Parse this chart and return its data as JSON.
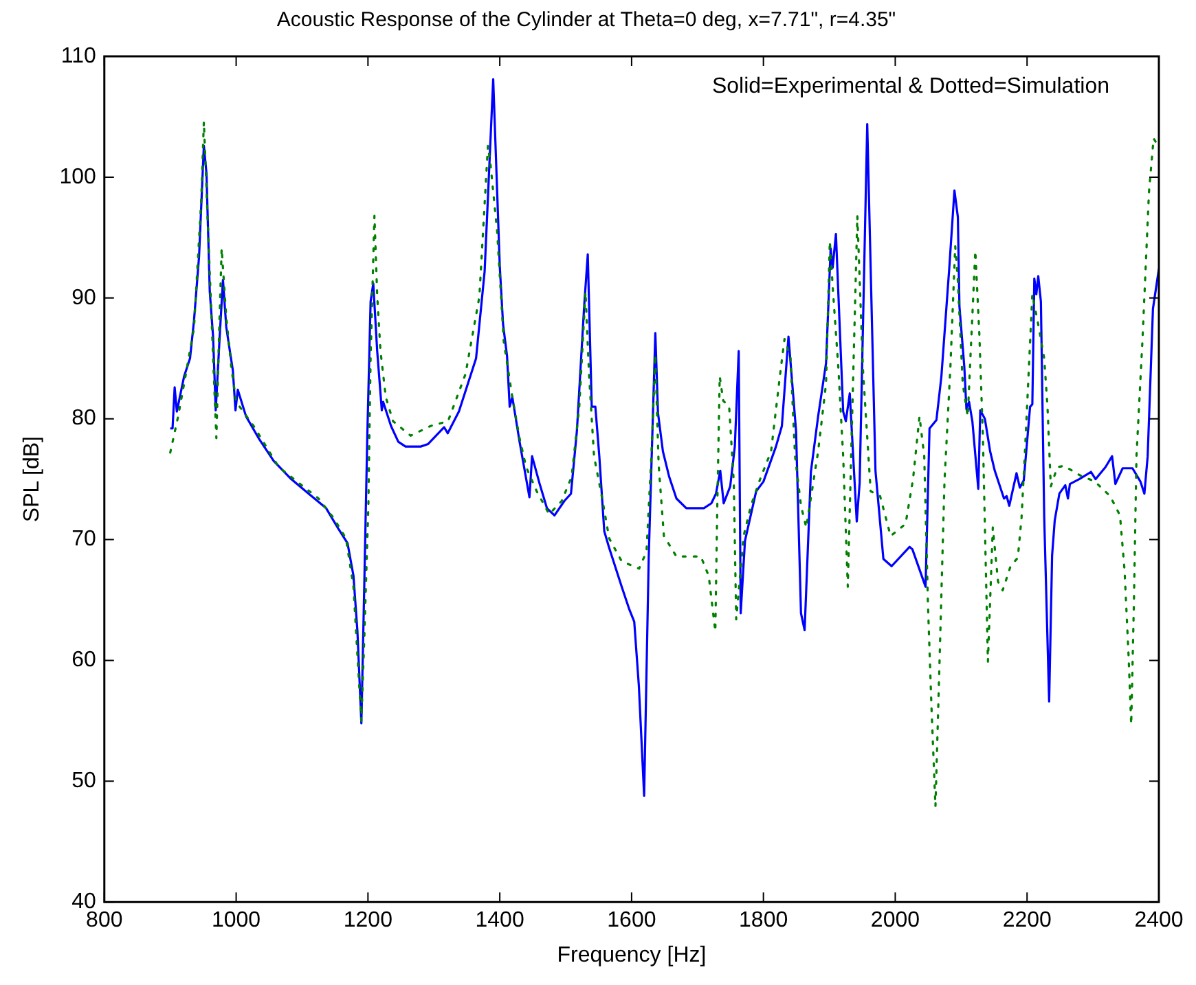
{
  "chart_data": {
    "type": "line",
    "title": "Acoustic Response of the Cylinder at Theta=0 deg, x=7.71\", r=4.35\"",
    "xlabel": "Frequency [Hz]",
    "ylabel": "SPL [dB]",
    "annotations": [
      "Solid=Experimental & Dotted=Simulation"
    ],
    "xlim": [
      800,
      2400
    ],
    "xticks": [
      800,
      1000,
      1200,
      1400,
      1600,
      1800,
      2000,
      2200,
      2400
    ],
    "ylim": [
      40,
      110
    ],
    "yticks": [
      40,
      50,
      60,
      70,
      80,
      90,
      100,
      110
    ],
    "grid": false,
    "legend": false,
    "marker": "none",
    "series": [
      {
        "color": "#0000ff",
        "line_style": "solid",
        "x": [
          900,
          903.5,
          906.7,
          910,
          921,
          930,
          936,
          943.7,
          951,
          955,
          960,
          965,
          969,
          975,
          980,
          985,
          990.5,
          995,
          999,
          1002.5,
          1015,
          1034,
          1057,
          1083.6,
          1110,
          1136.5,
          1155,
          1169,
          1178,
          1184,
          1190,
          1194.5,
          1199,
          1204,
          1208,
          1214,
          1221,
          1223,
          1235,
          1246,
          1257,
          1280,
          1291,
          1315.6,
          1321,
          1338,
          1364,
          1377,
          1390,
          1400,
          1405,
          1411,
          1415,
          1419,
          1430,
          1445,
          1449,
          1460,
          1471.5,
          1483,
          1498,
          1508,
          1517,
          1528,
          1533.5,
          1539.5,
          1545,
          1551,
          1558.5,
          1566,
          1585,
          1596,
          1604,
          1611,
          1619,
          1626,
          1636,
          1640,
          1647.5,
          1657,
          1668,
          1683,
          1709.6,
          1721,
          1728,
          1734.5,
          1739.7,
          1749.6,
          1756.6,
          1762.5,
          1765.5,
          1772,
          1789,
          1800,
          1819,
          1828,
          1838,
          1849.5,
          1857,
          1862.5,
          1872,
          1883,
          1895,
          1902,
          1905,
          1910,
          1921,
          1925,
          1931,
          1941.6,
          1946,
          1957.5,
          1970,
          1982,
          1994.5,
          2021.8,
          2026,
          2046,
          2052,
          2062.5,
          2070,
          2082,
          2089.8,
          2095,
          2097.4,
          2104.8,
          2108,
          2112,
          2117,
          2126,
          2129,
          2136,
          2144,
          2151,
          2165,
          2169,
          2173,
          2184,
          2189,
          2195,
          2204.6,
          2208,
          2211,
          2214,
          2217,
          2221,
          2226,
          2233.5,
          2238,
          2242,
          2249,
          2258,
          2262,
          2265,
          2279,
          2297,
          2304,
          2319,
          2329,
          2334,
          2345,
          2360,
          2372,
          2378,
          2383,
          2391,
          2400
        ],
        "values": [
          79.2,
          79.2,
          82.6,
          80.6,
          83.5,
          85,
          88.1,
          93.4,
          102.6,
          100.3,
          90.5,
          86.8,
          80.7,
          86.8,
          91.5,
          87.6,
          85.6,
          84,
          80.7,
          82.4,
          80.2,
          78.4,
          76.5,
          75,
          73.8,
          72.6,
          70.9,
          69.7,
          67,
          62.4,
          54.8,
          66.5,
          78.6,
          89.7,
          91.2,
          85.6,
          80.7,
          81.4,
          79.4,
          78.1,
          77.7,
          77.7,
          77.9,
          79.3,
          78.8,
          80.6,
          85,
          92.2,
          108.1,
          92.6,
          87.8,
          85.2,
          81,
          81.8,
          78.1,
          73.5,
          76.9,
          74.7,
          72.6,
          72,
          73.2,
          73.8,
          79,
          89.3,
          93.6,
          81,
          81,
          76.9,
          70.7,
          69.3,
          66.1,
          64.3,
          63.2,
          57.9,
          48.8,
          68.6,
          87.1,
          80.5,
          77.3,
          75.2,
          73.4,
          72.6,
          72.6,
          73,
          73.8,
          75.7,
          73,
          74.4,
          77.7,
          85.6,
          63.9,
          69.9,
          74,
          74.8,
          77.7,
          79.4,
          86.8,
          79,
          63.9,
          62.5,
          75.6,
          80.2,
          84.6,
          94.1,
          92.5,
          95.3,
          80.6,
          79.8,
          82.1,
          71.5,
          74.7,
          104.4,
          75.7,
          68.4,
          67.8,
          69.4,
          69.2,
          66.1,
          79.2,
          79.9,
          83.5,
          92.5,
          98.9,
          96.7,
          89.3,
          84.3,
          80.8,
          81.4,
          79.8,
          74.2,
          80.7,
          80,
          77.3,
          75.7,
          73.4,
          73.6,
          72.8,
          75.5,
          74.3,
          74.9,
          81,
          81.2,
          91.6,
          90.3,
          91.8,
          89.7,
          71.9,
          56.6,
          68.7,
          71.6,
          73.8,
          74.5,
          73.4,
          74.6,
          75,
          75.6,
          75,
          76,
          76.9,
          74.6,
          75.9,
          75.9,
          74.8,
          73.8,
          76.9,
          89.1,
          92.4
        ]
      },
      {
        "color": "#008000",
        "line_style": "dotted",
        "x": [
          900,
          912,
          923,
          936,
          947,
          951,
          959,
          965,
          970,
          974,
          978,
          985,
          992.6,
          1000,
          1026.6,
          1064.6,
          1125,
          1147.6,
          1166.6,
          1178,
          1185,
          1190,
          1194.5,
          1200.6,
          1204,
          1209.8,
          1214,
          1219,
          1227,
          1238,
          1264.8,
          1295,
          1321.5,
          1348,
          1369,
          1382,
          1386,
          1396,
          1406,
          1419,
          1430,
          1440,
          1456,
          1475,
          1494,
          1509,
          1520.6,
          1530,
          1535.6,
          1543,
          1554.7,
          1566,
          1585,
          1611.4,
          1622.6,
          1630,
          1636,
          1641,
          1649,
          1668,
          1690.8,
          1705,
          1717,
          1727,
          1730,
          1733.7,
          1739,
          1748,
          1755,
          1758.7,
          1770,
          1781,
          1795,
          1811.6,
          1826,
          1832,
          1841,
          1848,
          1857,
          1865,
          1883,
          1895,
          1900.7,
          1906,
          1913.6,
          1921,
          1928,
          1935,
          1942.5,
          1951,
          1962.7,
          1977,
          1993,
          2015.7,
          2027,
          2036.8,
          2044,
          2049.7,
          2055,
          2061,
          2067,
          2074.7,
          2083.7,
          2091,
          2095,
          2102.4,
          2110,
          2121.5,
          2127.6,
          2133,
          2140.6,
          2148,
          2156,
          2163,
          2175,
          2186,
          2191.6,
          2197,
          2208,
          2218,
          2226,
          2231,
          2236,
          2246,
          2256,
          2281,
          2303,
          2326,
          2341,
          2348,
          2354,
          2358,
          2362,
          2366,
          2375,
          2385,
          2392,
          2400
        ],
        "values": [
          77.2,
          80.2,
          83.5,
          87.5,
          98,
          104.6,
          93.4,
          85.1,
          78.4,
          86.8,
          94.1,
          88.4,
          84.3,
          81.4,
          79.4,
          76,
          73.4,
          71.8,
          70.1,
          66.1,
          59.5,
          55,
          62,
          72.8,
          85.1,
          96.8,
          90.2,
          85.6,
          81.8,
          79.8,
          78.6,
          79.4,
          79.8,
          83.7,
          90.1,
          102.6,
          101,
          95.5,
          86.4,
          81.8,
          78.4,
          76,
          74,
          72.1,
          73.2,
          75.2,
          81,
          90.5,
          83.5,
          76.9,
          73.6,
          70.1,
          68.2,
          67.6,
          69,
          76.9,
          85.3,
          76.2,
          70.3,
          68.6,
          68.6,
          68.6,
          67,
          62.4,
          72.8,
          83.5,
          81.5,
          81,
          74.8,
          63.4,
          70.3,
          72.8,
          75,
          77.3,
          84,
          86.6,
          85.1,
          76.9,
          72.8,
          71,
          77.3,
          82.9,
          94.7,
          90.2,
          84.3,
          76.9,
          66.1,
          81,
          96.8,
          84.1,
          74,
          73.6,
          70.3,
          71.3,
          75,
          80.2,
          76.9,
          64.5,
          56.1,
          47.9,
          59.5,
          74.8,
          84.3,
          94.3,
          91.4,
          82.9,
          80.2,
          93.9,
          87,
          78.5,
          59.9,
          71,
          66.5,
          65.8,
          67.8,
          68.5,
          71.8,
          77.5,
          90.3,
          87.5,
          85,
          81,
          74.4,
          76,
          76.1,
          75.3,
          74.8,
          73.6,
          72,
          67.4,
          60.4,
          54.7,
          64.5,
          76.9,
          86.4,
          98.8,
          103.2,
          102.5
        ]
      }
    ]
  }
}
